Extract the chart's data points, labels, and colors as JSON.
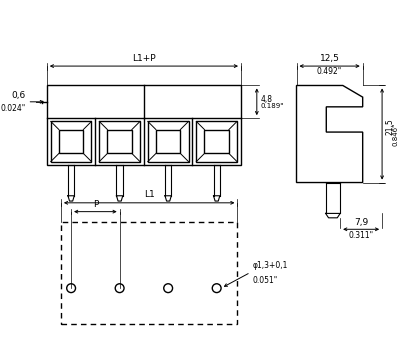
{
  "bg_color": "#ffffff",
  "line_color": "#000000",
  "fig_width": 4.0,
  "fig_height": 3.58,
  "dpi": 100,
  "annotations": {
    "L1_P_label": "L1+P",
    "L1_label": "L1",
    "P_label": "P",
    "dim_06": "0,6",
    "dim_024": "0.024\"",
    "dim_48": "4,8",
    "dim_189": "0.189\"",
    "dim_215": "21,5",
    "dim_846": "0.846\"",
    "dim_125": "12,5",
    "dim_492": "0.492\"",
    "dim_79": "7,9",
    "dim_311": "0.311\"",
    "dim_hole": "φ1,3+0,1",
    "dim_hole2": "0.051\""
  }
}
